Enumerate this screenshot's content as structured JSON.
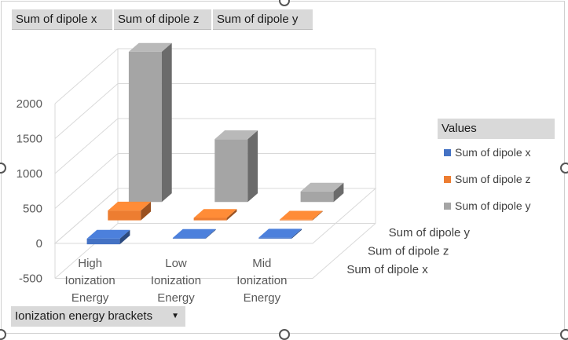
{
  "field_buttons": [
    "Sum of  dipole x",
    "Sum of  dipole z",
    "Sum of  dipole y"
  ],
  "axis_field": {
    "label": "Ionization energy brackets"
  },
  "legend": {
    "title": "Values",
    "items": [
      {
        "label": "Sum of  dipole x",
        "color": "#4472c4"
      },
      {
        "label": "Sum of  dipole z",
        "color": "#ed7d31"
      },
      {
        "label": "Sum of  dipole y",
        "color": "#a5a5a5"
      }
    ]
  },
  "chart_data": {
    "type": "bar",
    "subtype": "3d-column",
    "categories": [
      [
        "High",
        "Ionization",
        "Energy"
      ],
      [
        "Low",
        "Ionization",
        "Energy"
      ],
      [
        "Mid",
        "Ionization",
        "Energy"
      ]
    ],
    "series": [
      {
        "name": "Sum of  dipole x",
        "values": [
          -80,
          10,
          15
        ],
        "color": "#4472c4"
      },
      {
        "name": "Sum of  dipole z",
        "values": [
          140,
          35,
          10
        ],
        "color": "#ed7d31"
      },
      {
        "name": "Sum of  dipole y",
        "values": [
          2150,
          900,
          150
        ],
        "color": "#a5a5a5"
      }
    ],
    "ylim": [
      -500,
      2000
    ],
    "yticks": [
      -500,
      0,
      500,
      1000,
      1500,
      2000
    ],
    "grid": true,
    "legend_position": "right"
  }
}
